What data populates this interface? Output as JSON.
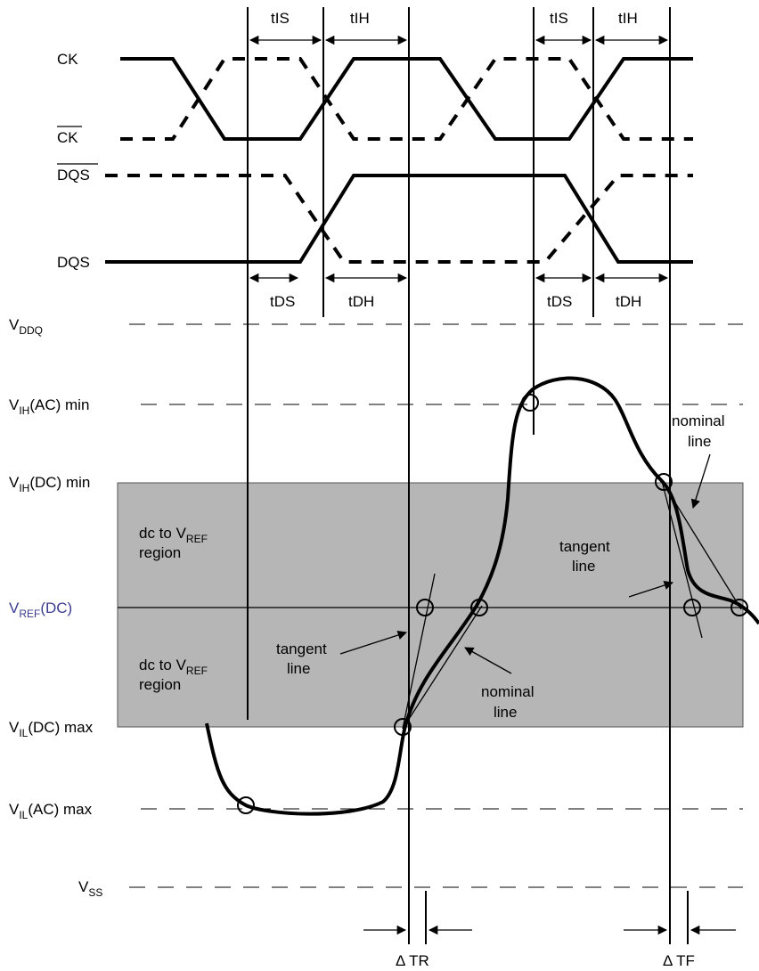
{
  "signals": {
    "ck": "CK",
    "ck_bar": "CK",
    "dqs_bar": "DQS",
    "dqs": "DQS"
  },
  "timing": {
    "tis": "tIS",
    "tih": "tIH",
    "tds": "tDS",
    "tdh": "tDH"
  },
  "levels": {
    "vddq": {
      "main": "V",
      "sub": "DDQ",
      "suffix": ""
    },
    "vih_ac": {
      "main": "V",
      "sub": "IH",
      "suffix": "(AC) min"
    },
    "vih_dc": {
      "main": "V",
      "sub": "IH",
      "suffix": "(DC) min"
    },
    "vref_dc": {
      "main": "V",
      "sub": "REF",
      "suffix": "(DC)"
    },
    "vil_dc": {
      "main": "V",
      "sub": "IL",
      "suffix": "(DC) max"
    },
    "vil_ac": {
      "main": "V",
      "sub": "IL",
      "suffix": "(AC) max"
    },
    "vss": {
      "main": "V",
      "sub": "SS",
      "suffix": ""
    }
  },
  "regions": {
    "upper": {
      "line1": "dc to V",
      "sub": "REF",
      "line2": "region"
    },
    "lower": {
      "line1": "dc to V",
      "sub": "REF",
      "line2": "region"
    }
  },
  "annotations": {
    "tangent_left": [
      "tangent",
      "line"
    ],
    "nominal_left": [
      "nominal",
      "line"
    ],
    "tangent_right": [
      "tangent",
      "line"
    ],
    "nominal_right": [
      "nominal",
      "line"
    ]
  },
  "deltas": {
    "tr": "Δ TR",
    "tf": "Δ TF"
  },
  "colors": {
    "region_fill": "#b6b6b6",
    "vref_label": "#3b3b8f"
  }
}
